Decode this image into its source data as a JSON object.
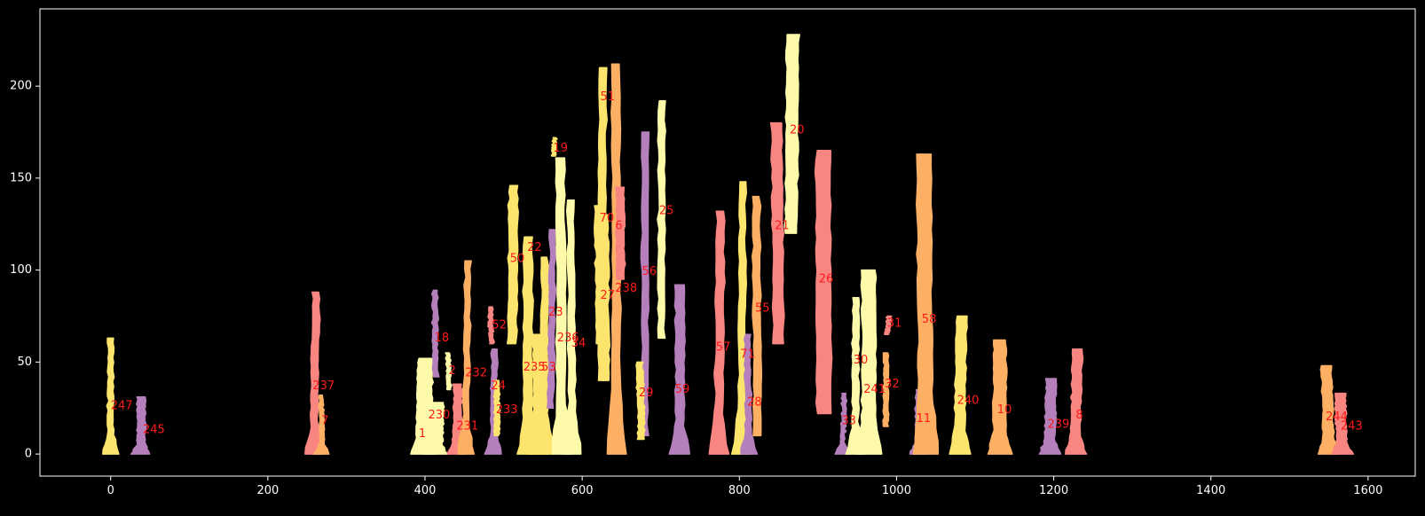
{
  "chart_data": {
    "type": "scatter",
    "title": "",
    "xlabel": "",
    "ylabel": "",
    "xlim": [
      -90,
      1660
    ],
    "ylim": [
      -12,
      242
    ],
    "grid": false,
    "background": "#000000",
    "x_ticks": [
      0,
      200,
      400,
      600,
      800,
      1000,
      1200,
      1400,
      1600
    ],
    "y_ticks": [
      0,
      50,
      100,
      150,
      200
    ],
    "label_color": "#ff1a1a",
    "palette": {
      "pink": "#f98581",
      "yellow": "#fde56d",
      "cream": "#fdfbaa",
      "purple": "#b57fbc",
      "orange": "#fdb063"
    },
    "tracks": [
      {
        "label": "247",
        "x0": -2,
        "x1": 2,
        "ymin": 0,
        "ymax": 63,
        "color": "yellow",
        "label_x": 0,
        "label_y": 26
      },
      {
        "label": "245",
        "x0": 35,
        "x1": 42,
        "ymin": 0,
        "ymax": 31,
        "color": "purple",
        "label_x": 41,
        "label_y": 13
      },
      {
        "label": "237",
        "x0": 256,
        "x1": 262,
        "ymin": 0,
        "ymax": 88,
        "color": "pink",
        "label_x": 257,
        "label_y": 37
      },
      {
        "label": "7",
        "x0": 268,
        "x1": 270,
        "ymin": 0,
        "ymax": 32,
        "color": "orange",
        "label_x": 268,
        "label_y": 18
      },
      {
        "label": "1",
        "x0": 390,
        "x1": 406,
        "ymin": 0,
        "ymax": 52,
        "color": "cream",
        "label_x": 392,
        "label_y": 11
      },
      {
        "label": "230",
        "x0": 405,
        "x1": 420,
        "ymin": 0,
        "ymax": 28,
        "color": "cream",
        "label_x": 404,
        "label_y": 21
      },
      {
        "label": "18",
        "x0": 412,
        "x1": 415,
        "ymin": 42,
        "ymax": 89,
        "color": "purple",
        "label_x": 412,
        "label_y": 63
      },
      {
        "label": "2",
        "x0": 430,
        "x1": 432,
        "ymin": 35,
        "ymax": 55,
        "color": "cream",
        "label_x": 430,
        "label_y": 45
      },
      {
        "label": "231",
        "x0": 437,
        "x1": 444,
        "ymin": 0,
        "ymax": 38,
        "color": "pink",
        "label_x": 440,
        "label_y": 15
      },
      {
        "label": "232",
        "x0": 450,
        "x1": 454,
        "ymin": 0,
        "ymax": 105,
        "color": "orange",
        "label_x": 451,
        "label_y": 44
      },
      {
        "label": "24",
        "x0": 485,
        "x1": 489,
        "ymin": 0,
        "ymax": 57,
        "color": "purple",
        "label_x": 484,
        "label_y": 37
      },
      {
        "label": "233",
        "x0": 490,
        "x1": 493,
        "ymin": 10,
        "ymax": 40,
        "color": "yellow",
        "label_x": 490,
        "label_y": 24
      },
      {
        "label": "52",
        "x0": 484,
        "x1": 486,
        "ymin": 60,
        "ymax": 80,
        "color": "pink",
        "label_x": 485,
        "label_y": 70
      },
      {
        "label": "50",
        "x0": 507,
        "x1": 515,
        "ymin": 60,
        "ymax": 146,
        "color": "yellow",
        "label_x": 508,
        "label_y": 106
      },
      {
        "label": "22",
        "x0": 527,
        "x1": 535,
        "ymin": 0,
        "ymax": 118,
        "color": "yellow",
        "label_x": 530,
        "label_y": 112
      },
      {
        "label": "235",
        "x0": 540,
        "x1": 550,
        "ymin": 0,
        "ymax": 65,
        "color": "yellow",
        "label_x": 525,
        "label_y": 47
      },
      {
        "label": "53",
        "x0": 550,
        "x1": 555,
        "ymin": 0,
        "ymax": 107,
        "color": "yellow",
        "label_x": 548,
        "label_y": 47
      },
      {
        "label": "23",
        "x0": 558,
        "x1": 562,
        "ymin": 25,
        "ymax": 122,
        "color": "purple",
        "label_x": 557,
        "label_y": 77
      },
      {
        "label": "19",
        "x0": 563,
        "x1": 564,
        "ymin": 162,
        "ymax": 172,
        "color": "yellow",
        "label_x": 563,
        "label_y": 166
      },
      {
        "label": "236",
        "x0": 570,
        "x1": 578,
        "ymin": 0,
        "ymax": 161,
        "color": "cream",
        "label_x": 568,
        "label_y": 63
      },
      {
        "label": "34",
        "x0": 585,
        "x1": 590,
        "ymin": 0,
        "ymax": 138,
        "color": "cream",
        "label_x": 586,
        "label_y": 60
      },
      {
        "label": "51",
        "x0": 622,
        "x1": 628,
        "ymin": 40,
        "ymax": 210,
        "color": "yellow",
        "label_x": 623,
        "label_y": 194
      },
      {
        "label": "70",
        "x0": 620,
        "x1": 626,
        "ymin": 60,
        "ymax": 135,
        "color": "yellow",
        "label_x": 622,
        "label_y": 128
      },
      {
        "label": "27",
        "x0": 628,
        "x1": 633,
        "ymin": 40,
        "ymax": 130,
        "color": "yellow",
        "label_x": 623,
        "label_y": 86
      },
      {
        "label": "6",
        "x0": 640,
        "x1": 647,
        "ymin": 0,
        "ymax": 212,
        "color": "orange",
        "label_x": 642,
        "label_y": 124
      },
      {
        "label": "238",
        "x0": 645,
        "x1": 652,
        "ymin": 95,
        "ymax": 145,
        "color": "pink",
        "label_x": 642,
        "label_y": 90
      },
      {
        "label": "56",
        "x0": 677,
        "x1": 682,
        "ymin": 10,
        "ymax": 175,
        "color": "purple",
        "label_x": 676,
        "label_y": 99
      },
      {
        "label": "29",
        "x0": 673,
        "x1": 678,
        "ymin": 8,
        "ymax": 50,
        "color": "yellow",
        "label_x": 672,
        "label_y": 33
      },
      {
        "label": "25",
        "x0": 698,
        "x1": 703,
        "ymin": 63,
        "ymax": 192,
        "color": "cream",
        "label_x": 698,
        "label_y": 132
      },
      {
        "label": "59",
        "x0": 720,
        "x1": 728,
        "ymin": 0,
        "ymax": 92,
        "color": "purple",
        "label_x": 718,
        "label_y": 35
      },
      {
        "label": "57",
        "x0": 770,
        "x1": 777,
        "ymin": 0,
        "ymax": 132,
        "color": "pink",
        "label_x": 770,
        "label_y": 58
      },
      {
        "label": "71",
        "x0": 800,
        "x1": 805,
        "ymin": 0,
        "ymax": 148,
        "color": "yellow",
        "label_x": 801,
        "label_y": 54
      },
      {
        "label": "28",
        "x0": 810,
        "x1": 814,
        "ymin": 0,
        "ymax": 65,
        "color": "purple",
        "label_x": 810,
        "label_y": 28
      },
      {
        "label": "55",
        "x0": 820,
        "x1": 826,
        "ymin": 10,
        "ymax": 140,
        "color": "orange",
        "label_x": 820,
        "label_y": 79
      },
      {
        "label": "21",
        "x0": 845,
        "x1": 855,
        "ymin": 60,
        "ymax": 180,
        "color": "pink",
        "label_x": 845,
        "label_y": 124
      },
      {
        "label": "20",
        "x0": 860,
        "x1": 872,
        "ymin": 120,
        "ymax": 228,
        "color": "cream",
        "label_x": 864,
        "label_y": 176
      },
      {
        "label": "26",
        "x0": 900,
        "x1": 915,
        "ymin": 22,
        "ymax": 165,
        "color": "pink",
        "label_x": 901,
        "label_y": 95
      },
      {
        "label": "33",
        "x0": 930,
        "x1": 932,
        "ymin": 0,
        "ymax": 33,
        "color": "purple",
        "label_x": 930,
        "label_y": 18
      },
      {
        "label": "30",
        "x0": 945,
        "x1": 950,
        "ymin": 0,
        "ymax": 85,
        "color": "cream",
        "label_x": 945,
        "label_y": 51
      },
      {
        "label": "241",
        "x0": 958,
        "x1": 972,
        "ymin": 0,
        "ymax": 100,
        "color": "cream",
        "label_x": 958,
        "label_y": 35
      },
      {
        "label": "32",
        "x0": 985,
        "x1": 988,
        "ymin": 15,
        "ymax": 55,
        "color": "orange",
        "label_x": 985,
        "label_y": 38
      },
      {
        "label": "31",
        "x0": 987,
        "x1": 989,
        "ymin": 65,
        "ymax": 75,
        "color": "pink",
        "label_x": 988,
        "label_y": 71
      },
      {
        "label": "11",
        "x0": 1025,
        "x1": 1030,
        "ymin": 0,
        "ymax": 35,
        "color": "purple",
        "label_x": 1025,
        "label_y": 19
      },
      {
        "label": "58",
        "x0": 1030,
        "x1": 1045,
        "ymin": 0,
        "ymax": 163,
        "color": "orange",
        "label_x": 1032,
        "label_y": 73
      },
      {
        "label": "240",
        "x0": 1075,
        "x1": 1085,
        "ymin": 0,
        "ymax": 75,
        "color": "yellow",
        "label_x": 1077,
        "label_y": 29
      },
      {
        "label": "10",
        "x0": 1125,
        "x1": 1138,
        "ymin": 0,
        "ymax": 62,
        "color": "orange",
        "label_x": 1128,
        "label_y": 24
      },
      {
        "label": "239",
        "x0": 1190,
        "x1": 1200,
        "ymin": 0,
        "ymax": 41,
        "color": "purple",
        "label_x": 1192,
        "label_y": 16
      },
      {
        "label": "8",
        "x0": 1223,
        "x1": 1232,
        "ymin": 0,
        "ymax": 57,
        "color": "pink",
        "label_x": 1228,
        "label_y": 21
      },
      {
        "label": "244",
        "x0": 1545,
        "x1": 1555,
        "ymin": 0,
        "ymax": 48,
        "color": "orange",
        "label_x": 1546,
        "label_y": 20
      },
      {
        "label": "243",
        "x0": 1562,
        "x1": 1572,
        "ymin": 0,
        "ymax": 33,
        "color": "pink",
        "label_x": 1565,
        "label_y": 15
      }
    ]
  }
}
